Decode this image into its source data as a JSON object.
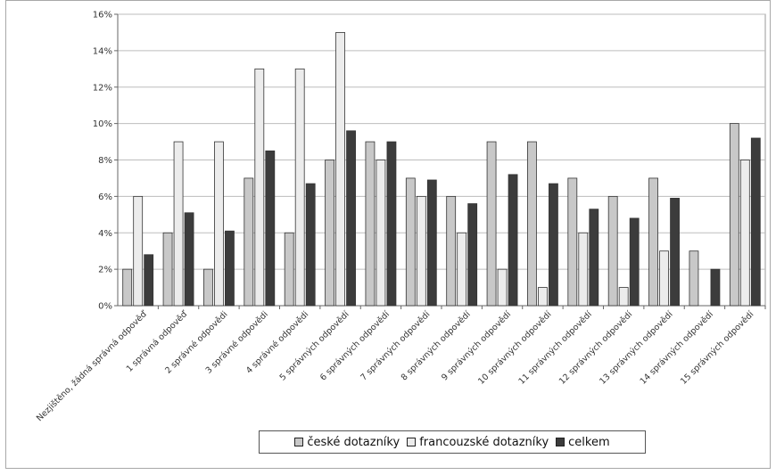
{
  "chart_data": {
    "type": "bar",
    "title": "",
    "xlabel": "",
    "ylabel": "",
    "ylim": [
      0,
      16
    ],
    "yticks": [
      "0%",
      "2%",
      "4%",
      "6%",
      "8%",
      "10%",
      "12%",
      "14%",
      "16%"
    ],
    "grid": true,
    "legend_position": "bottom",
    "categories": [
      "Nezjištěno, žádná správná odpověď",
      "1 správná odpověď",
      "2 správné odpovědi",
      "3 správné odpovědi",
      "4 správné odpovědi",
      "5 správných odpovědí",
      "6 správných odpovědí",
      "7 správných odpovědí",
      "8 správných odpovědí",
      "9 správných odpovědí",
      "10 správných odpovědí",
      "11 správných odpovědí",
      "12 správných odpovědí",
      "13 správných odpovědí",
      "14 správných odpovědí",
      "15 správných odpovědí"
    ],
    "series": [
      {
        "name": "české dotazníky",
        "color": "#c8c8c8",
        "values": [
          2,
          4,
          2,
          7,
          4,
          8,
          9,
          7,
          6,
          9,
          9,
          7,
          6,
          7,
          3,
          10
        ]
      },
      {
        "name": "francouzské dotazníky",
        "color": "#ececec",
        "values": [
          6,
          9,
          9,
          13,
          13,
          15,
          8,
          6,
          4,
          2,
          1,
          4,
          1,
          3,
          0,
          8
        ]
      },
      {
        "name": "celkem",
        "color": "#3c3c3c",
        "values": [
          2.8,
          5.1,
          4.1,
          8.5,
          6.7,
          9.6,
          9.0,
          6.9,
          5.6,
          7.2,
          6.7,
          5.3,
          4.8,
          5.9,
          2.0,
          9.2
        ]
      }
    ]
  }
}
